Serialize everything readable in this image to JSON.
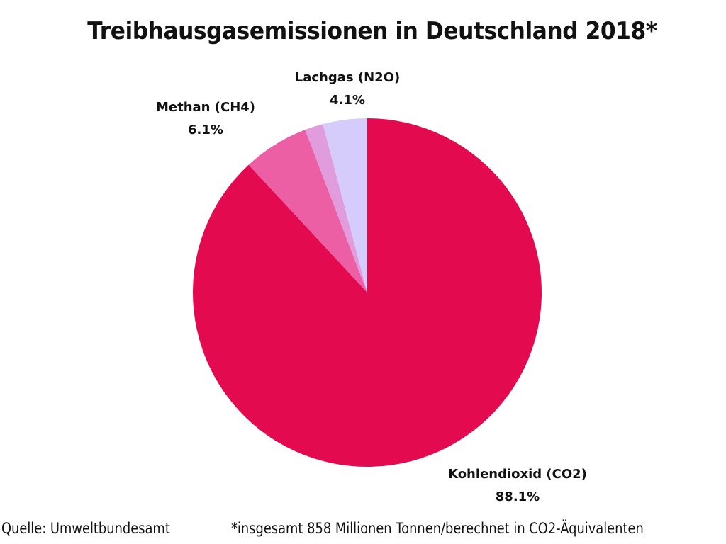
{
  "title": "Treibhausgasemissionen in Deutschland 2018*",
  "labels": {
    "co2": {
      "name": "Kohlendioxid (CO2)",
      "value": "88.1%"
    },
    "ch4": {
      "name": "Methan (CH4)",
      "value": "6.1%"
    },
    "n2o": {
      "name": "Lachgas (N2O)",
      "value": "4.1%"
    }
  },
  "footer": {
    "source": "Quelle: Umweltbundesamt",
    "note": "*insgesamt 858 Millionen Tonnen/berechnet in CO2-Äquivalenten"
  },
  "colors": {
    "co2": "#E30A50",
    "ch4": "#EC5FA4",
    "other": "#E09CDC",
    "n2o": "#D6CCFC"
  },
  "chart_data": {
    "type": "pie",
    "title": "Treibhausgasemissionen in Deutschland 2018*",
    "categories": [
      "Kohlendioxid (CO2)",
      "Methan (CH4)",
      "(unlabeled)",
      "Lachgas (N2O)"
    ],
    "values": [
      88.1,
      6.1,
      1.7,
      4.1
    ],
    "colors": [
      "#E30A50",
      "#EC5FA4",
      "#E09CDC",
      "#D6CCFC"
    ],
    "start_angle": "12 o'clock",
    "direction": "clockwise from CO2",
    "annotations": [
      "Quelle: Umweltbundesamt",
      "*insgesamt 858 Millionen Tonnen/berechnet in CO2-Äquivalenten"
    ],
    "legend": "none (direct labels)"
  }
}
